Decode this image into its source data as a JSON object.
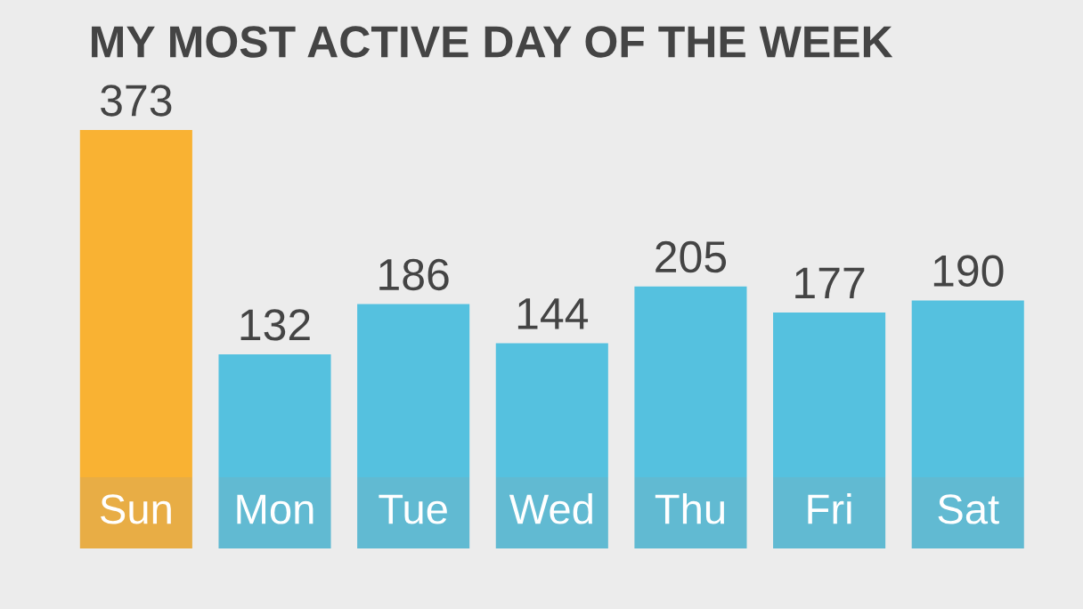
{
  "chart_data": {
    "type": "bar",
    "title": "MY MOST ACTIVE DAY OF THE WEEK",
    "categories": [
      "Sun",
      "Mon",
      "Tue",
      "Wed",
      "Thu",
      "Fri",
      "Sat"
    ],
    "values": [
      373,
      132,
      186,
      144,
      205,
      177,
      190
    ],
    "colors": [
      "#f9b233",
      "#55c1df",
      "#55c1df",
      "#55c1df",
      "#55c1df",
      "#55c1df",
      "#55c1df"
    ],
    "data_labels": true
  }
}
